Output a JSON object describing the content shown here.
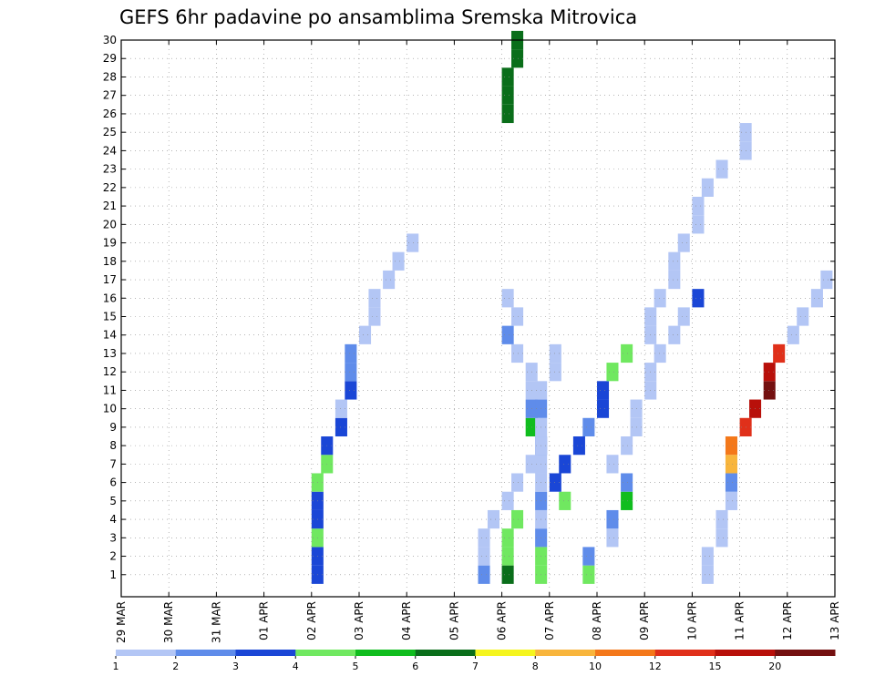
{
  "chart_data": {
    "type": "heatmap",
    "title": "GEFS 6hr padavine po ansamblima Sremska Mitrovica",
    "x_tick_labels": [
      "29 MAR",
      "30 MAR",
      "31 MAR",
      "01 APR",
      "02 APR",
      "03 APR",
      "04 APR",
      "05 APR",
      "06 APR",
      "07 APR",
      "08 APR",
      "09 APR",
      "10 APR",
      "11 APR",
      "12 APR",
      "13 APR"
    ],
    "y_tick_labels": [
      "1",
      "2",
      "3",
      "4",
      "5",
      "6",
      "7",
      "8",
      "9",
      "10",
      "11",
      "12",
      "13",
      "14",
      "15",
      "16",
      "17",
      "18",
      "19",
      "20",
      "21",
      "22",
      "23",
      "24",
      "25",
      "26",
      "27",
      "28",
      "29",
      "30"
    ],
    "x_range_days": [
      0,
      15
    ],
    "y_range": [
      0,
      30
    ],
    "step_hours": 6,
    "grid": "dotted",
    "colorbar": {
      "labels": [
        "1",
        "2",
        "3",
        "4",
        "5",
        "6",
        "7",
        "8",
        "10",
        "12",
        "15",
        "20"
      ],
      "colors": [
        "#b3c6f5",
        "#5f8cea",
        "#1a46d6",
        "#70e860",
        "#10bd1e",
        "#0a6e1a",
        "#f5f51e",
        "#f8b53c",
        "#f4781a",
        "#e0301a",
        "#b8100a",
        "#741010"
      ]
    },
    "series": [
      [
        [
          8.7,
          1,
          4
        ],
        [
          8.7,
          2,
          4
        ],
        [
          8.7,
          3,
          2
        ],
        [
          8.7,
          4,
          1
        ],
        [
          8.7,
          5,
          2
        ],
        [
          8.7,
          6,
          1
        ],
        [
          8.7,
          7,
          1
        ],
        [
          8.7,
          8,
          2
        ],
        [
          8.5,
          9,
          5
        ],
        [
          8.5,
          10,
          2
        ],
        [
          8.5,
          11,
          1
        ],
        [
          8.5,
          12,
          1
        ],
        [
          8.2,
          13,
          1
        ],
        [
          8.0,
          14,
          2
        ],
        [
          8.2,
          15,
          1
        ],
        [
          8.0,
          16,
          1
        ]
      ],
      [
        [
          9.7,
          1,
          4
        ],
        [
          9.7,
          2,
          2
        ],
        [
          10.2,
          3,
          1
        ],
        [
          10.2,
          4,
          2
        ],
        [
          10.5,
          5,
          5
        ],
        [
          10.5,
          6,
          2
        ],
        [
          10.2,
          7,
          1
        ],
        [
          10.5,
          8,
          1
        ],
        [
          10.7,
          9,
          1
        ],
        [
          10.7,
          10,
          1
        ],
        [
          11.0,
          11,
          1
        ],
        [
          11.0,
          12,
          1
        ],
        [
          11.2,
          13,
          1
        ],
        [
          11.5,
          14,
          1
        ],
        [
          11.7,
          15,
          1
        ],
        [
          12.0,
          16,
          3
        ]
      ],
      [
        [
          7.5,
          1,
          2
        ],
        [
          7.5,
          2,
          1
        ],
        [
          7.5,
          3,
          1
        ],
        [
          7.7,
          4,
          1
        ],
        [
          8.0,
          5,
          1
        ],
        [
          8.2,
          6,
          1
        ],
        [
          8.5,
          7,
          1
        ],
        [
          8.7,
          8,
          1
        ],
        [
          8.7,
          9,
          1
        ],
        [
          8.7,
          10,
          2
        ],
        [
          8.7,
          11,
          1
        ],
        [
          9.0,
          12,
          1
        ],
        [
          9.0,
          13,
          1
        ]
      ],
      [
        [
          4.0,
          1,
          3
        ],
        [
          4.0,
          2,
          3
        ],
        [
          4.0,
          3,
          4
        ],
        [
          4.0,
          4,
          3
        ],
        [
          4.0,
          5,
          3
        ],
        [
          4.0,
          6,
          4
        ],
        [
          4.2,
          7,
          4
        ],
        [
          4.2,
          8,
          3
        ],
        [
          4.5,
          9,
          3
        ],
        [
          4.5,
          10,
          1
        ],
        [
          4.7,
          11,
          3
        ],
        [
          4.7,
          12,
          2
        ],
        [
          4.7,
          13,
          2
        ],
        [
          5.0,
          14,
          1
        ],
        [
          5.2,
          15,
          1
        ],
        [
          5.2,
          16,
          1
        ],
        [
          5.5,
          17,
          1
        ],
        [
          5.7,
          18,
          1
        ],
        [
          6.0,
          19,
          1
        ]
      ],
      [
        [
          12.2,
          1,
          1
        ],
        [
          12.2,
          2,
          1
        ],
        [
          12.5,
          3,
          1
        ],
        [
          12.5,
          4,
          1
        ],
        [
          12.7,
          5,
          1
        ],
        [
          12.7,
          6,
          2
        ],
        [
          12.7,
          7,
          8
        ],
        [
          12.7,
          8,
          9
        ],
        [
          13.0,
          9,
          10
        ],
        [
          13.2,
          10,
          11
        ],
        [
          13.5,
          11,
          12
        ],
        [
          13.5,
          12,
          11
        ],
        [
          13.7,
          13,
          10
        ],
        [
          14.0,
          14,
          1
        ],
        [
          14.2,
          15,
          1
        ],
        [
          14.5,
          16,
          1
        ],
        [
          14.7,
          17,
          1
        ],
        [
          15.0,
          18,
          1
        ],
        [
          15.0,
          19,
          1
        ],
        [
          15.0,
          20,
          1
        ]
      ]
    ],
    "cells": [
      [
        8.0,
        1,
        6
      ],
      [
        8.0,
        2,
        4
      ],
      [
        8.0,
        3,
        4
      ],
      [
        8.2,
        4,
        4
      ],
      [
        9.2,
        5,
        4
      ],
      [
        9.0,
        6,
        3
      ],
      [
        9.2,
        7,
        3
      ],
      [
        9.5,
        8,
        3
      ],
      [
        9.7,
        9,
        2
      ],
      [
        10.0,
        10,
        3
      ],
      [
        10.0,
        11,
        3
      ],
      [
        10.2,
        12,
        4
      ],
      [
        10.5,
        13,
        4
      ],
      [
        11.0,
        14,
        1
      ],
      [
        11.0,
        15,
        1
      ],
      [
        11.2,
        16,
        1
      ],
      [
        11.5,
        17,
        1
      ],
      [
        11.5,
        18,
        1
      ],
      [
        11.7,
        19,
        1
      ],
      [
        12.0,
        20,
        1
      ],
      [
        12.0,
        21,
        1
      ],
      [
        12.2,
        22,
        1
      ],
      [
        12.5,
        23,
        1
      ],
      [
        13.0,
        24,
        1
      ],
      [
        13.0,
        25,
        1
      ],
      [
        8.0,
        26,
        6
      ],
      [
        8.0,
        27,
        6
      ],
      [
        8.0,
        28,
        6
      ],
      [
        8.2,
        29,
        6
      ],
      [
        8.2,
        30,
        6
      ]
    ]
  }
}
